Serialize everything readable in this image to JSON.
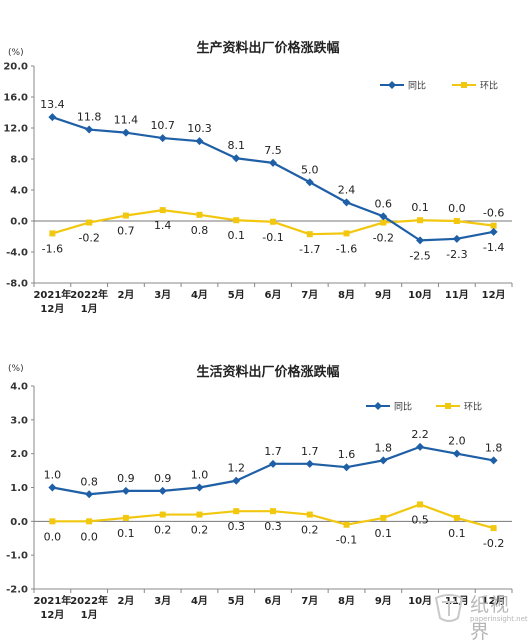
{
  "chart_data": [
    {
      "type": "line",
      "title": "生产资料出厂价格涨跌幅",
      "yunit": "(%)",
      "ylim": [
        -8.0,
        20.0
      ],
      "ytick_step": 4.0,
      "ytick_labels": [
        "20.0",
        "16.0",
        "12.0",
        "8.0",
        "4.0",
        "0.0",
        "-4.0",
        "-8.0"
      ],
      "categories": [
        [
          "2021年",
          "12月"
        ],
        [
          "2022年",
          "1月"
        ],
        [
          "2月"
        ],
        [
          "3月"
        ],
        [
          "4月"
        ],
        [
          "5月"
        ],
        [
          "6月"
        ],
        [
          "7月"
        ],
        [
          "8月"
        ],
        [
          "9月"
        ],
        [
          "10月"
        ],
        [
          "11月"
        ],
        [
          "12月"
        ]
      ],
      "legend_position": "top-right",
      "series": [
        {
          "name": "同比",
          "color": "#1f5fa6",
          "marker": "diamond",
          "values": [
            13.4,
            11.8,
            11.4,
            10.7,
            10.3,
            8.1,
            7.5,
            5.0,
            2.4,
            0.6,
            -2.5,
            -2.3,
            -1.4
          ],
          "labels": [
            "13.4",
            "11.8",
            "11.4",
            "10.7",
            "10.3",
            "8.1",
            "7.5",
            "5.0",
            "2.4",
            "0.6",
            "-2.5",
            "-2.3",
            "-1.4"
          ]
        },
        {
          "name": "环比",
          "color": "#f2c70f",
          "marker": "square",
          "values": [
            -1.6,
            -0.2,
            0.7,
            1.4,
            0.8,
            0.1,
            -0.1,
            -1.7,
            -1.6,
            -0.2,
            0.1,
            0.0,
            -0.6
          ],
          "labels": [
            "-1.6",
            "-0.2",
            "0.7",
            "1.4",
            "0.8",
            "0.1",
            "-0.1",
            "-1.7",
            "-1.6",
            "-0.2",
            "0.1",
            "0.0",
            "-0.6"
          ]
        }
      ]
    },
    {
      "type": "line",
      "title": "生活资料出厂价格涨跌幅",
      "yunit": "(%)",
      "ylim": [
        -2.0,
        4.0
      ],
      "ytick_step": 1.0,
      "ytick_labels": [
        "4.0",
        "3.0",
        "2.0",
        "1.0",
        "0.0",
        "-1.0",
        "-2.0"
      ],
      "categories": [
        [
          "2021年",
          "12月"
        ],
        [
          "2022年",
          "1月"
        ],
        [
          "2月"
        ],
        [
          "3月"
        ],
        [
          "4月"
        ],
        [
          "5月"
        ],
        [
          "6月"
        ],
        [
          "7月"
        ],
        [
          "8月"
        ],
        [
          "9月"
        ],
        [
          "10月"
        ],
        [
          "11月"
        ],
        [
          "12月"
        ]
      ],
      "legend_position": "top-right",
      "series": [
        {
          "name": "同比",
          "color": "#1f5fa6",
          "marker": "diamond",
          "values": [
            1.0,
            0.8,
            0.9,
            0.9,
            1.0,
            1.2,
            1.7,
            1.7,
            1.6,
            1.8,
            2.2,
            2.0,
            1.8
          ],
          "labels": [
            "1.0",
            "0.8",
            "0.9",
            "0.9",
            "1.0",
            "1.2",
            "1.7",
            "1.7",
            "1.6",
            "1.8",
            "2.2",
            "2.0",
            "1.8"
          ]
        },
        {
          "name": "环比",
          "color": "#f2c70f",
          "marker": "square",
          "values": [
            0.0,
            0.0,
            0.1,
            0.2,
            0.2,
            0.3,
            0.3,
            0.2,
            -0.1,
            0.1,
            0.5,
            0.1,
            -0.2
          ],
          "labels": [
            "0.0",
            "0.0",
            "0.1",
            "0.2",
            "0.2",
            "0.3",
            "0.3",
            "0.2",
            "-0.1",
            "0.1",
            "0.5",
            "0.1",
            "-0.2"
          ]
        }
      ]
    }
  ],
  "watermark": {
    "text": "纸视界",
    "subtext": "paperinsight.net"
  }
}
